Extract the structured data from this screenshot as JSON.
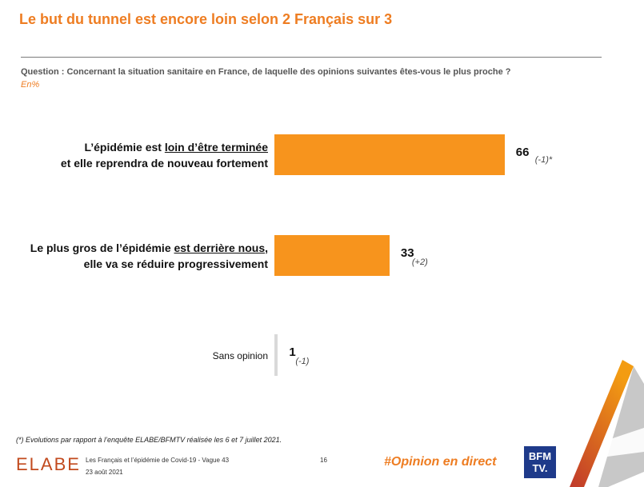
{
  "title": "Le but du tunnel est encore loin selon 2 Français sur 3",
  "question": "Question : Concernant la situation sanitaire en France, de laquelle des opinions suivantes êtes-vous le plus proche ?",
  "unit": "En%",
  "colors": {
    "accent": "#ee7d22",
    "bar": "#f7941d",
    "neutral": "#d9d9d9"
  },
  "chart_data": {
    "type": "bar",
    "orientation": "horizontal",
    "title": "Le but du tunnel est encore loin selon 2 Français sur 3",
    "xlabel": "",
    "ylabel": "",
    "xlim": [
      0,
      100
    ],
    "categories": [
      [
        "L’épidémie est ",
        "loin d’être terminée",
        "et elle reprendra de nouveau fortement"
      ],
      [
        "Le plus gros de l’épidémie ",
        "est derrière nous",
        "elle va se réduire progressivement"
      ],
      [
        "Sans opinion"
      ]
    ],
    "values": [
      66,
      33,
      1
    ],
    "value_labels": [
      "66",
      "33",
      "1"
    ],
    "evolutions": [
      "(-1)*",
      "(+2)",
      "(-1)"
    ],
    "legend": "none"
  },
  "footnote": "(*) Evolutions par rapport à l’enquête ELABE/BFMTV réalisée les 6 et 7 juillet 2021.",
  "footer": {
    "logo": "ELABE",
    "source_line1": "Les Français et l’épidémie de Covid-19 - Vague 43",
    "source_line2": "23 août 2021",
    "page_number": "16",
    "hashtag": "#Opinion en direct",
    "partner_logo_line1": "BFM",
    "partner_logo_line2": "TV."
  }
}
